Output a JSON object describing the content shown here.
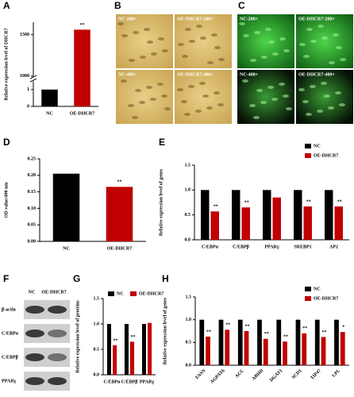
{
  "panel_labels": [
    "A",
    "B",
    "C",
    "D",
    "E",
    "F",
    "G",
    "H"
  ],
  "micrographs": [
    {
      "images": [
        "NC-200×",
        "OE-DHCR7-200×",
        "NC-400×",
        "OE-DHCR7-400×"
      ]
    },
    {
      "images": [
        "NC-200×",
        "OE-DHCR7-200×",
        "NC-400×",
        "OE-DHCR7-400×"
      ]
    }
  ],
  "blot": {
    "columns": [
      "NC",
      "OE-DHCR7"
    ],
    "rows": [
      "β-actin",
      "C/EBPα",
      "C/EBPβ",
      "PPARγ"
    ]
  },
  "chart_data": [
    {
      "type": "bar",
      "ylabel": "Relative expression level of DHCR7",
      "categories": [
        "NC",
        "OE-DHCR7"
      ],
      "values": [
        1,
        1560
      ],
      "colors": [
        "#000000",
        "#c00000"
      ],
      "annotations": [
        null,
        "**"
      ],
      "y_segments": [
        {
          "ylim": [
            0,
            1.5
          ],
          "yticks": [
            0,
            1
          ]
        },
        {
          "ylim": [
            1000,
            1650
          ],
          "yticks": [
            1000,
            1500
          ]
        }
      ]
    },
    {
      "type": "bar",
      "ylabel": "OD value/490 nm",
      "categories": [
        "NC",
        "OE-DHCR7"
      ],
      "values": [
        0.205,
        0.165
      ],
      "colors": [
        "#000000",
        "#c00000"
      ],
      "annotations": [
        null,
        "**"
      ],
      "ylim": [
        0,
        0.25
      ],
      "yticks": [
        {
          "value": 0,
          "label": "0.00"
        },
        {
          "value": 0.05,
          "label": "0.05"
        },
        {
          "value": 0.1,
          "label": "0.10"
        },
        {
          "value": 0.15,
          "label": "0.15"
        },
        {
          "value": 0.2,
          "label": "0.20"
        },
        {
          "value": 0.25,
          "label": "0.25"
        }
      ]
    },
    {
      "type": "bar",
      "ylabel": "Relative expression level of genes",
      "legend": "upper right",
      "categories": [
        "C/EBPα",
        "C/EBPβ",
        "PPARγ",
        "SREBP1",
        "AP2"
      ],
      "series": [
        {
          "name": "NC",
          "color": "#000000",
          "values": [
            1,
            1,
            1,
            1,
            1
          ]
        },
        {
          "name": "OE-DHCR7",
          "color": "#c00000",
          "values": [
            0.57,
            0.65,
            0.85,
            0.67,
            0.67
          ],
          "annotations": [
            "**",
            "**",
            null,
            "**",
            "**"
          ]
        }
      ],
      "ylim": [
        0,
        1.5
      ],
      "yticks": [
        {
          "value": 0,
          "label": "0.0"
        },
        {
          "value": 0.5,
          "label": "0.5"
        },
        {
          "value": 1,
          "label": "1.0"
        },
        {
          "value": 1.5,
          "label": "1.5"
        }
      ]
    },
    {
      "type": "bar",
      "ylabel": "Relative expression level of proteins",
      "legend": "upper center",
      "categories": [
        "C/EBPα",
        "C/EBPβ",
        "PPARγ"
      ],
      "series": [
        {
          "name": "NC",
          "color": "#000000",
          "values": [
            1,
            1,
            1
          ]
        },
        {
          "name": "OE-DHCR7",
          "color": "#c00000",
          "values": [
            0.58,
            0.65,
            1.02
          ],
          "annotations": [
            "**",
            "**",
            null
          ]
        }
      ],
      "ylim": [
        0,
        1.5
      ],
      "yticks": [
        {
          "value": 0,
          "label": "0.0"
        },
        {
          "value": 0.5,
          "label": "0.5"
        },
        {
          "value": 1,
          "label": "1.0"
        },
        {
          "value": 1.5,
          "label": "1.5"
        }
      ]
    },
    {
      "type": "bar",
      "ylabel": "Relative expression level of genes",
      "legend": "upper right",
      "categories": [
        "FASN",
        "AGPAT6",
        "ACC",
        "ABHD",
        "DGAT1",
        "SCD1",
        "TIP47",
        "LPL"
      ],
      "series": [
        {
          "name": "NC",
          "color": "#000000",
          "values": [
            1,
            1,
            1,
            1,
            1,
            1,
            1,
            1
          ]
        },
        {
          "name": "OE-DHCR7",
          "color": "#c00000",
          "values": [
            0.63,
            0.78,
            0.75,
            0.58,
            0.52,
            0.7,
            0.62,
            0.73
          ],
          "annotations": [
            "**",
            "**",
            "**",
            "**",
            "**",
            "**",
            "**",
            "*"
          ]
        }
      ],
      "ylim": [
        0,
        1.5
      ],
      "yticks": [
        {
          "value": 0,
          "label": "0.0"
        },
        {
          "value": 0.5,
          "label": "0.5"
        },
        {
          "value": 1,
          "label": "1.0"
        },
        {
          "value": 1.5,
          "label": "1.5"
        }
      ]
    }
  ]
}
